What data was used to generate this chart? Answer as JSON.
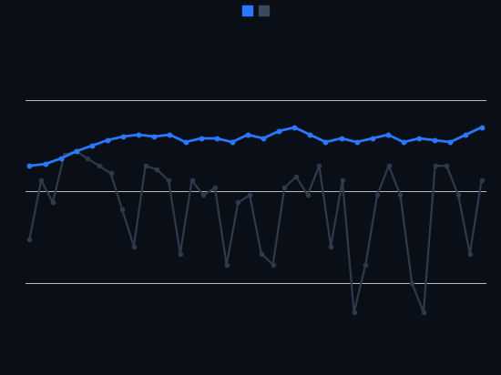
{
  "background_color": "#0a0e17",
  "plot_bg_color": "#0a0e17",
  "grid_color": "#ffffff",
  "blue_color": "#2979ff",
  "dark_color": "#2d3a4a",
  "legend_marker1_color": "#2979ff",
  "legend_marker2_color": "#3a4a5c",
  "blue_series": [
    6.2,
    6.25,
    6.4,
    6.6,
    6.75,
    6.9,
    7.0,
    7.05,
    7.0,
    7.05,
    6.85,
    6.95,
    6.95,
    6.85,
    7.05,
    6.95,
    7.15,
    7.25,
    7.05,
    6.85,
    6.95,
    6.85,
    6.95,
    7.05,
    6.85,
    6.95,
    6.9,
    6.85,
    7.05,
    7.25
  ],
  "dark_series": [
    4.2,
    5.8,
    5.2,
    6.5,
    6.6,
    6.4,
    6.2,
    6.0,
    5.0,
    4.0,
    6.2,
    6.1,
    5.8,
    3.8,
    5.8,
    5.4,
    5.6,
    3.5,
    5.2,
    5.4,
    3.8,
    3.5,
    5.6,
    5.9,
    5.4,
    6.2,
    4.0,
    5.8,
    2.2,
    3.5,
    5.4,
    6.2,
    5.4,
    3.0,
    2.2,
    6.2,
    6.2,
    5.4,
    3.8,
    5.8
  ],
  "ylim": [
    1.0,
    9.5
  ],
  "ytick_positions": [
    3.0,
    5.5,
    8.0
  ],
  "figsize": [
    5.5,
    4.12
  ],
  "dpi": 100
}
